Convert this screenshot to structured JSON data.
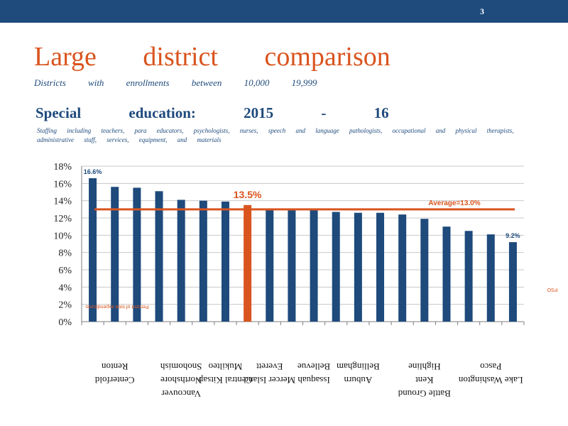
{
  "header": {
    "page_number": "3"
  },
  "title": "Large district comparison",
  "subtitle": "Districts with enrollments between 10,000 19,999",
  "section_heading": "Special education: 2015 - 16",
  "staffing_note": "Staffing including teachers, para educators, psychologists, nurses, speech and language pathologists, occupational and physical therapists, administrative staff, services, equipment, and materials",
  "colors": {
    "bar": "#1e4a7c",
    "highlight": "#d9541e",
    "average": "#d9541e",
    "band": "#1e4a7c"
  },
  "chart_data": {
    "type": "bar",
    "ylim": [
      0,
      18
    ],
    "yticks": [
      "0%",
      "2%",
      "4%",
      "6%",
      "8%",
      "10%",
      "12%",
      "14%",
      "16%",
      "18%"
    ],
    "values": [
      16.6,
      15.6,
      15.5,
      15.1,
      14.1,
      14.0,
      13.9,
      13.5,
      12.9,
      12.9,
      12.9,
      12.7,
      12.6,
      12.6,
      12.4,
      11.9,
      11.0,
      10.5,
      10.1,
      9.2
    ],
    "highlight_index": 7,
    "data_labels": [
      {
        "index": 0,
        "text": "16.6%"
      },
      {
        "index": 7,
        "text": "13.5%"
      },
      {
        "index": 19,
        "text": "9.2%"
      }
    ],
    "average": {
      "value": 13.0,
      "label": "Average=13.0%"
    },
    "left_note": "Percent of total expenditures",
    "right_note": "PSO",
    "x_labels_mirrored": [
      {
        "bar": 1,
        "lines": [
          "Renton",
          "Centerfold"
        ]
      },
      {
        "bar": 4,
        "lines": [
          "Snohomish",
          "Northshore",
          "Vancouver"
        ]
      },
      {
        "bar": 6,
        "lines": [
          "Mukilteo",
          "Central Kitsap"
        ]
      },
      {
        "bar": 8,
        "lines": [
          "Everett",
          "Mercer Island"
        ]
      },
      {
        "bar": 10,
        "lines": [
          "Bellevue",
          "Issaquah"
        ]
      },
      {
        "bar": 12,
        "lines": [
          "Bellingham",
          "Auburn"
        ]
      },
      {
        "bar": 15,
        "lines": [
          "Highline",
          "Kent",
          "Battle Ground"
        ]
      },
      {
        "bar": 18,
        "lines": [
          "Pasco",
          "Lake Washington"
        ]
      }
    ]
  }
}
